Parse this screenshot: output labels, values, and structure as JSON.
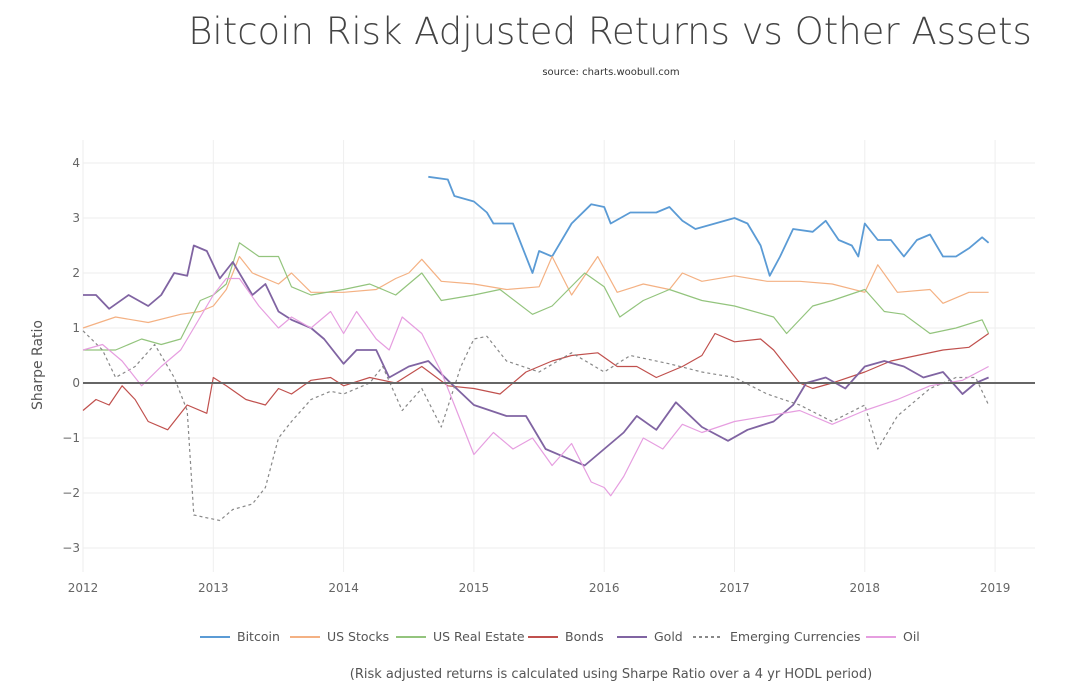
{
  "chart_data": {
    "type": "line",
    "title": "Bitcoin Risk Adjusted Returns vs Other Assets",
    "subtitle": "source: charts.woobull.com",
    "xlabel": "",
    "ylabel": "Sharpe Ratio",
    "footnote": "(Risk adjusted returns is calculated using Sharpe Ratio over a 4 yr HODL period)",
    "xlim": [
      2012,
      2019.3
    ],
    "ylim": [
      -3.6,
      4.4
    ],
    "x_ticks": [
      "2012",
      "2013",
      "2014",
      "2015",
      "2016",
      "2017",
      "2018",
      "2019"
    ],
    "y_ticks": [
      4,
      3,
      2,
      1,
      0,
      -1,
      -2,
      -3
    ],
    "y_tick_labels": [
      "4",
      "3",
      "2",
      "1",
      "0",
      "−1",
      "−2",
      "−3"
    ],
    "grid": true,
    "legend_position": "bottom",
    "series": [
      {
        "name": "Bitcoin",
        "color": "#5b9bd5",
        "dash": false,
        "width": 1.8,
        "x": [
          2014.65,
          2014.8,
          2014.85,
          2015.0,
          2015.1,
          2015.15,
          2015.3,
          2015.35,
          2015.45,
          2015.5,
          2015.6,
          2015.75,
          2015.9,
          2016.0,
          2016.05,
          2016.2,
          2016.4,
          2016.5,
          2016.6,
          2016.7,
          2016.85,
          2017.0,
          2017.1,
          2017.2,
          2017.27,
          2017.35,
          2017.45,
          2017.6,
          2017.7,
          2017.8,
          2017.9,
          2017.95,
          2018.0,
          2018.1,
          2018.2,
          2018.3,
          2018.4,
          2018.5,
          2018.6,
          2018.7,
          2018.8,
          2018.9,
          2018.95
        ],
        "y": [
          3.75,
          3.7,
          3.4,
          3.3,
          3.1,
          2.9,
          2.9,
          2.6,
          2.0,
          2.4,
          2.3,
          2.9,
          3.25,
          3.2,
          2.9,
          3.1,
          3.1,
          3.2,
          2.95,
          2.8,
          2.9,
          3.0,
          2.9,
          2.5,
          1.95,
          2.3,
          2.8,
          2.75,
          2.95,
          2.6,
          2.5,
          2.3,
          2.9,
          2.6,
          2.6,
          2.3,
          2.6,
          2.7,
          2.3,
          2.3,
          2.45,
          2.65,
          2.55
        ]
      },
      {
        "name": "US Stocks",
        "color": "#f4b183",
        "dash": false,
        "width": 1.2,
        "x": [
          2012,
          2012.25,
          2012.5,
          2012.75,
          2012.9,
          2013.0,
          2013.1,
          2013.2,
          2013.3,
          2013.5,
          2013.6,
          2013.75,
          2014.0,
          2014.25,
          2014.4,
          2014.5,
          2014.6,
          2014.75,
          2015.0,
          2015.25,
          2015.5,
          2015.6,
          2015.75,
          2015.95,
          2016.1,
          2016.3,
          2016.5,
          2016.6,
          2016.75,
          2017.0,
          2017.25,
          2017.5,
          2017.75,
          2018.0,
          2018.1,
          2018.25,
          2018.5,
          2018.6,
          2018.8,
          2018.95
        ],
        "y": [
          1.0,
          1.2,
          1.1,
          1.25,
          1.3,
          1.4,
          1.7,
          2.3,
          2.0,
          1.8,
          2.0,
          1.65,
          1.65,
          1.7,
          1.9,
          2.0,
          2.25,
          1.85,
          1.8,
          1.7,
          1.75,
          2.3,
          1.6,
          2.3,
          1.65,
          1.8,
          1.7,
          2.0,
          1.85,
          1.95,
          1.85,
          1.85,
          1.8,
          1.65,
          2.15,
          1.65,
          1.7,
          1.45,
          1.65,
          1.65
        ]
      },
      {
        "name": "US Real Estate",
        "color": "#93c47d",
        "dash": false,
        "width": 1.2,
        "x": [
          2012,
          2012.25,
          2012.45,
          2012.6,
          2012.75,
          2012.9,
          2013.0,
          2013.1,
          2013.2,
          2013.35,
          2013.5,
          2013.6,
          2013.75,
          2014.0,
          2014.2,
          2014.4,
          2014.6,
          2014.75,
          2015.0,
          2015.2,
          2015.45,
          2015.6,
          2015.85,
          2016.0,
          2016.12,
          2016.3,
          2016.5,
          2016.75,
          2017.0,
          2017.3,
          2017.4,
          2017.6,
          2017.75,
          2018.0,
          2018.15,
          2018.3,
          2018.5,
          2018.7,
          2018.9,
          2018.95
        ],
        "y": [
          0.6,
          0.6,
          0.8,
          0.7,
          0.8,
          1.5,
          1.6,
          1.8,
          2.55,
          2.3,
          2.3,
          1.75,
          1.6,
          1.7,
          1.8,
          1.6,
          2.0,
          1.5,
          1.6,
          1.7,
          1.25,
          1.4,
          2.0,
          1.75,
          1.2,
          1.5,
          1.7,
          1.5,
          1.4,
          1.2,
          0.9,
          1.4,
          1.5,
          1.7,
          1.3,
          1.25,
          0.9,
          1.0,
          1.15,
          0.9
        ]
      },
      {
        "name": "Bonds",
        "color": "#c0504d",
        "dash": false,
        "width": 1.2,
        "x": [
          2012,
          2012.1,
          2012.2,
          2012.3,
          2012.4,
          2012.5,
          2012.65,
          2012.8,
          2012.95,
          2013.0,
          2013.1,
          2013.25,
          2013.4,
          2013.5,
          2013.6,
          2013.75,
          2013.9,
          2014.0,
          2014.2,
          2014.4,
          2014.6,
          2014.8,
          2015.0,
          2015.2,
          2015.4,
          2015.6,
          2015.75,
          2015.95,
          2016.1,
          2016.25,
          2016.4,
          2016.6,
          2016.75,
          2016.85,
          2017.0,
          2017.2,
          2017.3,
          2017.4,
          2017.5,
          2017.6,
          2017.75,
          2018.0,
          2018.2,
          2018.4,
          2018.6,
          2018.8,
          2018.95
        ],
        "y": [
          -0.5,
          -0.3,
          -0.4,
          -0.05,
          -0.3,
          -0.7,
          -0.85,
          -0.4,
          -0.55,
          0.1,
          -0.05,
          -0.3,
          -0.4,
          -0.1,
          -0.2,
          0.05,
          0.1,
          -0.05,
          0.1,
          0.0,
          0.3,
          -0.05,
          -0.1,
          -0.2,
          0.2,
          0.4,
          0.5,
          0.55,
          0.3,
          0.3,
          0.1,
          0.3,
          0.5,
          0.9,
          0.75,
          0.8,
          0.6,
          0.3,
          0.0,
          -0.1,
          0.0,
          0.2,
          0.4,
          0.5,
          0.6,
          0.65,
          0.9
        ]
      },
      {
        "name": "Gold",
        "color": "#8064a2",
        "dash": false,
        "width": 1.8,
        "x": [
          2012,
          2012.1,
          2012.2,
          2012.35,
          2012.5,
          2012.6,
          2012.7,
          2012.8,
          2012.85,
          2012.95,
          2013.05,
          2013.15,
          2013.3,
          2013.4,
          2013.5,
          2013.6,
          2013.75,
          2013.85,
          2014.0,
          2014.1,
          2014.25,
          2014.35,
          2014.5,
          2014.65,
          2014.8,
          2015.0,
          2015.25,
          2015.4,
          2015.55,
          2015.7,
          2015.85,
          2016.0,
          2016.15,
          2016.25,
          2016.4,
          2016.55,
          2016.75,
          2016.95,
          2017.1,
          2017.3,
          2017.45,
          2017.55,
          2017.7,
          2017.85,
          2018.0,
          2018.15,
          2018.3,
          2018.45,
          2018.6,
          2018.75,
          2018.85,
          2018.95
        ],
        "y": [
          1.6,
          1.6,
          1.35,
          1.6,
          1.4,
          1.6,
          2.0,
          1.95,
          2.5,
          2.4,
          1.9,
          2.2,
          1.6,
          1.8,
          1.3,
          1.15,
          1.0,
          0.8,
          0.35,
          0.6,
          0.6,
          0.1,
          0.3,
          0.4,
          0.05,
          -0.4,
          -0.6,
          -0.6,
          -1.2,
          -1.35,
          -1.5,
          -1.2,
          -0.9,
          -0.6,
          -0.85,
          -0.35,
          -0.8,
          -1.05,
          -0.85,
          -0.7,
          -0.4,
          0.0,
          0.1,
          -0.1,
          0.3,
          0.4,
          0.3,
          0.1,
          0.2,
          -0.2,
          0.0,
          0.1
        ]
      },
      {
        "name": "Emerging Currencies",
        "color": "#888888",
        "dash": true,
        "width": 1.2,
        "x": [
          2012,
          2012.15,
          2012.25,
          2012.4,
          2012.55,
          2012.7,
          2012.8,
          2012.85,
          2012.95,
          2013.05,
          2013.15,
          2013.3,
          2013.4,
          2013.5,
          2013.6,
          2013.75,
          2013.9,
          2014.0,
          2014.2,
          2014.3,
          2014.45,
          2014.6,
          2014.75,
          2014.9,
          2015.0,
          2015.1,
          2015.25,
          2015.5,
          2015.75,
          2016.0,
          2016.2,
          2016.5,
          2016.75,
          2017.0,
          2017.25,
          2017.5,
          2017.75,
          2018.0,
          2018.1,
          2018.25,
          2018.5,
          2018.7,
          2018.85,
          2018.95
        ],
        "y": [
          0.95,
          0.6,
          0.1,
          0.3,
          0.7,
          0.1,
          -0.5,
          -2.4,
          -2.45,
          -2.5,
          -2.3,
          -2.2,
          -1.9,
          -1.0,
          -0.7,
          -0.3,
          -0.15,
          -0.2,
          0.0,
          0.3,
          -0.5,
          -0.1,
          -0.8,
          0.3,
          0.8,
          0.85,
          0.4,
          0.2,
          0.55,
          0.2,
          0.5,
          0.35,
          0.2,
          0.1,
          -0.2,
          -0.4,
          -0.7,
          -0.4,
          -1.2,
          -0.6,
          -0.1,
          0.1,
          0.1,
          -0.4
        ]
      },
      {
        "name": "Oil",
        "color": "#e69ee0",
        "dash": false,
        "width": 1.2,
        "x": [
          2012,
          2012.15,
          2012.3,
          2012.45,
          2012.6,
          2012.75,
          2012.9,
          2013.0,
          2013.1,
          2013.2,
          2013.35,
          2013.5,
          2013.6,
          2013.75,
          2013.9,
          2014.0,
          2014.1,
          2014.25,
          2014.35,
          2014.45,
          2014.6,
          2014.75,
          2014.85,
          2015.0,
          2015.15,
          2015.3,
          2015.45,
          2015.6,
          2015.75,
          2015.9,
          2016.0,
          2016.05,
          2016.15,
          2016.3,
          2016.45,
          2016.6,
          2016.75,
          2017.0,
          2017.25,
          2017.5,
          2017.75,
          2018.0,
          2018.25,
          2018.5,
          2018.75,
          2018.95
        ],
        "y": [
          0.6,
          0.7,
          0.4,
          -0.05,
          0.3,
          0.6,
          1.2,
          1.6,
          1.9,
          1.9,
          1.4,
          1.0,
          1.2,
          1.0,
          1.3,
          0.9,
          1.3,
          0.8,
          0.6,
          1.2,
          0.9,
          0.2,
          -0.4,
          -1.3,
          -0.9,
          -1.2,
          -1.0,
          -1.5,
          -1.1,
          -1.8,
          -1.9,
          -2.05,
          -1.7,
          -1.0,
          -1.2,
          -0.75,
          -0.9,
          -0.7,
          -0.6,
          -0.5,
          -0.75,
          -0.5,
          -0.3,
          -0.05,
          0.05,
          0.3
        ]
      }
    ]
  }
}
